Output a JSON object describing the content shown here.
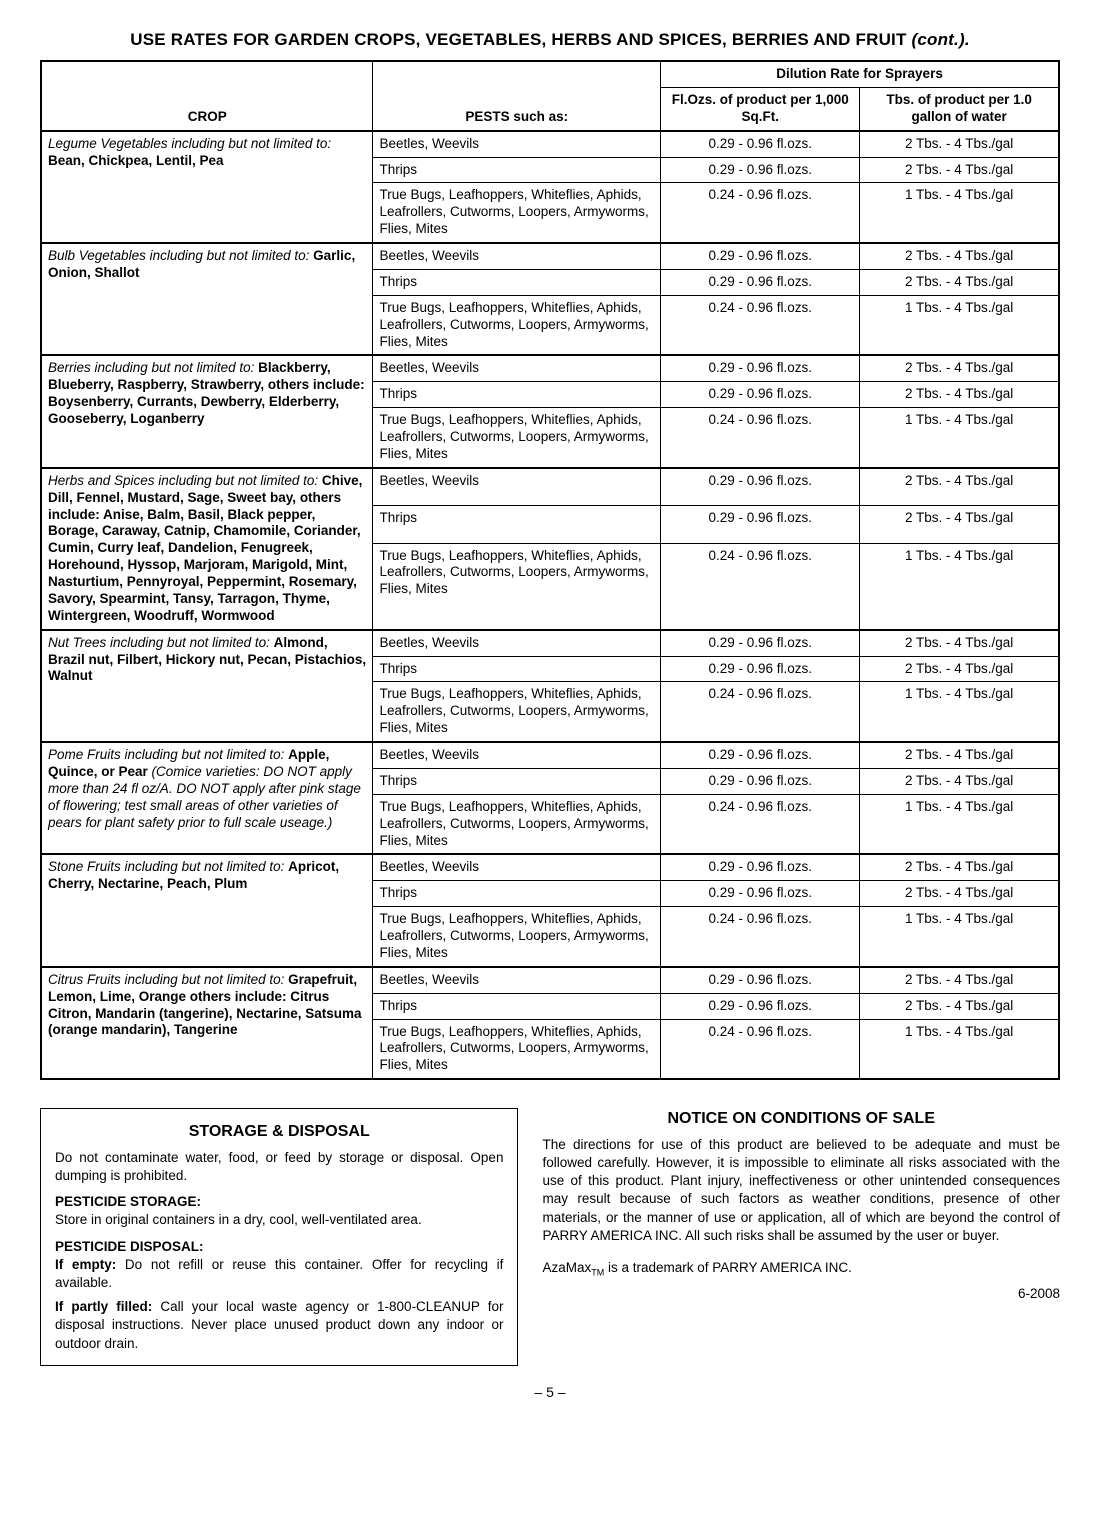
{
  "title_main": "USE RATES FOR GARDEN CROPS, VEGETABLES, HERBS AND SPICES, BERRIES AND FRUIT ",
  "title_cont": "(cont.).",
  "headers": {
    "crop": "CROP",
    "pests": "PESTS such as:",
    "dilution": "Dilution Rate for Sprayers",
    "floz": "Fl.Ozs. of product per 1,000 Sq.Ft.",
    "tbs": "Tbs. of product per 1.0 gallon of water"
  },
  "pest_sets": [
    {
      "pest": "Beetles, Weevils",
      "floz": "0.29 - 0.96 fl.ozs.",
      "tbs": "2 Tbs. - 4 Tbs./gal"
    },
    {
      "pest": "Thrips",
      "floz": "0.29 - 0.96 fl.ozs.",
      "tbs": "2 Tbs. - 4 Tbs./gal"
    },
    {
      "pest": "True Bugs, Leafhoppers, Whiteflies, Aphids, Leafrollers, Cutworms, Loopers, Armyworms, Flies, Mites",
      "floz": "0.24 - 0.96 fl.ozs.",
      "tbs": "1 Tbs. - 4 Tbs./gal"
    }
  ],
  "crops": [
    {
      "intro": "Legume Vegetables including but not limited to:  ",
      "list": "Bean, Chickpea, Lentil, Pea",
      "note": ""
    },
    {
      "intro": "Bulb Vegetables including but not limited to: ",
      "list": "Garlic, Onion, Shallot",
      "note": ""
    },
    {
      "intro": "Berries including but not limited to: ",
      "list": "Blackberry, Blueberry, Raspberry, Strawberry, others include: Boysenberry, Currants, Dewberry, Elderberry, Gooseberry, Loganberry",
      "note": ""
    },
    {
      "intro": "Herbs and Spices including but not limited to:  ",
      "list": "Chive, Dill, Fennel, Mustard, Sage, Sweet bay, others include: Anise, Balm, Basil, Black pepper, Borage, Caraway, Catnip, Chamomile, Coriander, Cumin, Curry leaf, Dandelion, Fenugreek, Horehound, Hyssop, Marjoram, Marigold, Mint, Nasturtium, Pennyroyal, Peppermint, Rosemary, Savory, Spearmint, Tansy, Tarragon, Thyme, Wintergreen, Woodruff, Wormwood",
      "note": ""
    },
    {
      "intro": "Nut Trees including but not limited to: ",
      "list": "Almond, Brazil nut, Filbert, Hickory nut, Pecan, Pistachios, Walnut",
      "note": ""
    },
    {
      "intro": "Pome Fruits including but not limited to: ",
      "list": "Apple, Quince, or Pear ",
      "note": "(Comice varieties: DO NOT apply more than 24 fl oz/A. DO NOT apply after pink stage of flowering; test small areas of other varieties of pears for plant safety prior to full scale useage.)"
    },
    {
      "intro": "Stone Fruits including but not limited to: ",
      "list": "Apricot, Cherry, Nectarine, Peach, Plum",
      "note": ""
    },
    {
      "intro": "Citrus Fruits including but not limited to: ",
      "list": "Grapefruit, Lemon, Lime, Orange others include: Citrus Citron, Mandarin (tangerine), Nectarine, Satsuma (orange mandarin), Tangerine",
      "note": ""
    }
  ],
  "storage": {
    "title": "STORAGE & DISPOSAL",
    "p1": "Do not contaminate water, food, or feed by storage or disposal. Open dumping is prohibited.",
    "h_storage": "PESTICIDE STORAGE:",
    "p_storage": "Store in original containers in a dry, cool, well-ventilated area.",
    "h_disposal": "PESTICIDE DISPOSAL:",
    "empty_label": "If empty: ",
    "empty_text": "Do not refill or reuse this container.  Offer for recycling if available.",
    "filled_label": "If partly filled: ",
    "filled_text": "Call your local waste agency or 1-800-CLEANUP for disposal instructions. Never place unused product down any indoor or outdoor drain."
  },
  "notice": {
    "title": "NOTICE ON CONDITIONS OF SALE",
    "body": "The directions for use of this product are believed to be adequate and must be followed carefully. However, it is impossible to eliminate all risks associated with the use of this product. Plant injury, ineffectiveness or other unintended consequences may result because of such factors as weather conditions, presence of other materials, or the manner of use or application, all of which are beyond the control of PARRY AMERICA INC. All  such risks shall be assumed by the user or buyer.",
    "trademark_pre": "AzaMax",
    "trademark_tm": "TM",
    "trademark_post": " is a trademark of PARRY AMERICA INC.",
    "date": "6-2008"
  },
  "page_number": "– 5 –"
}
